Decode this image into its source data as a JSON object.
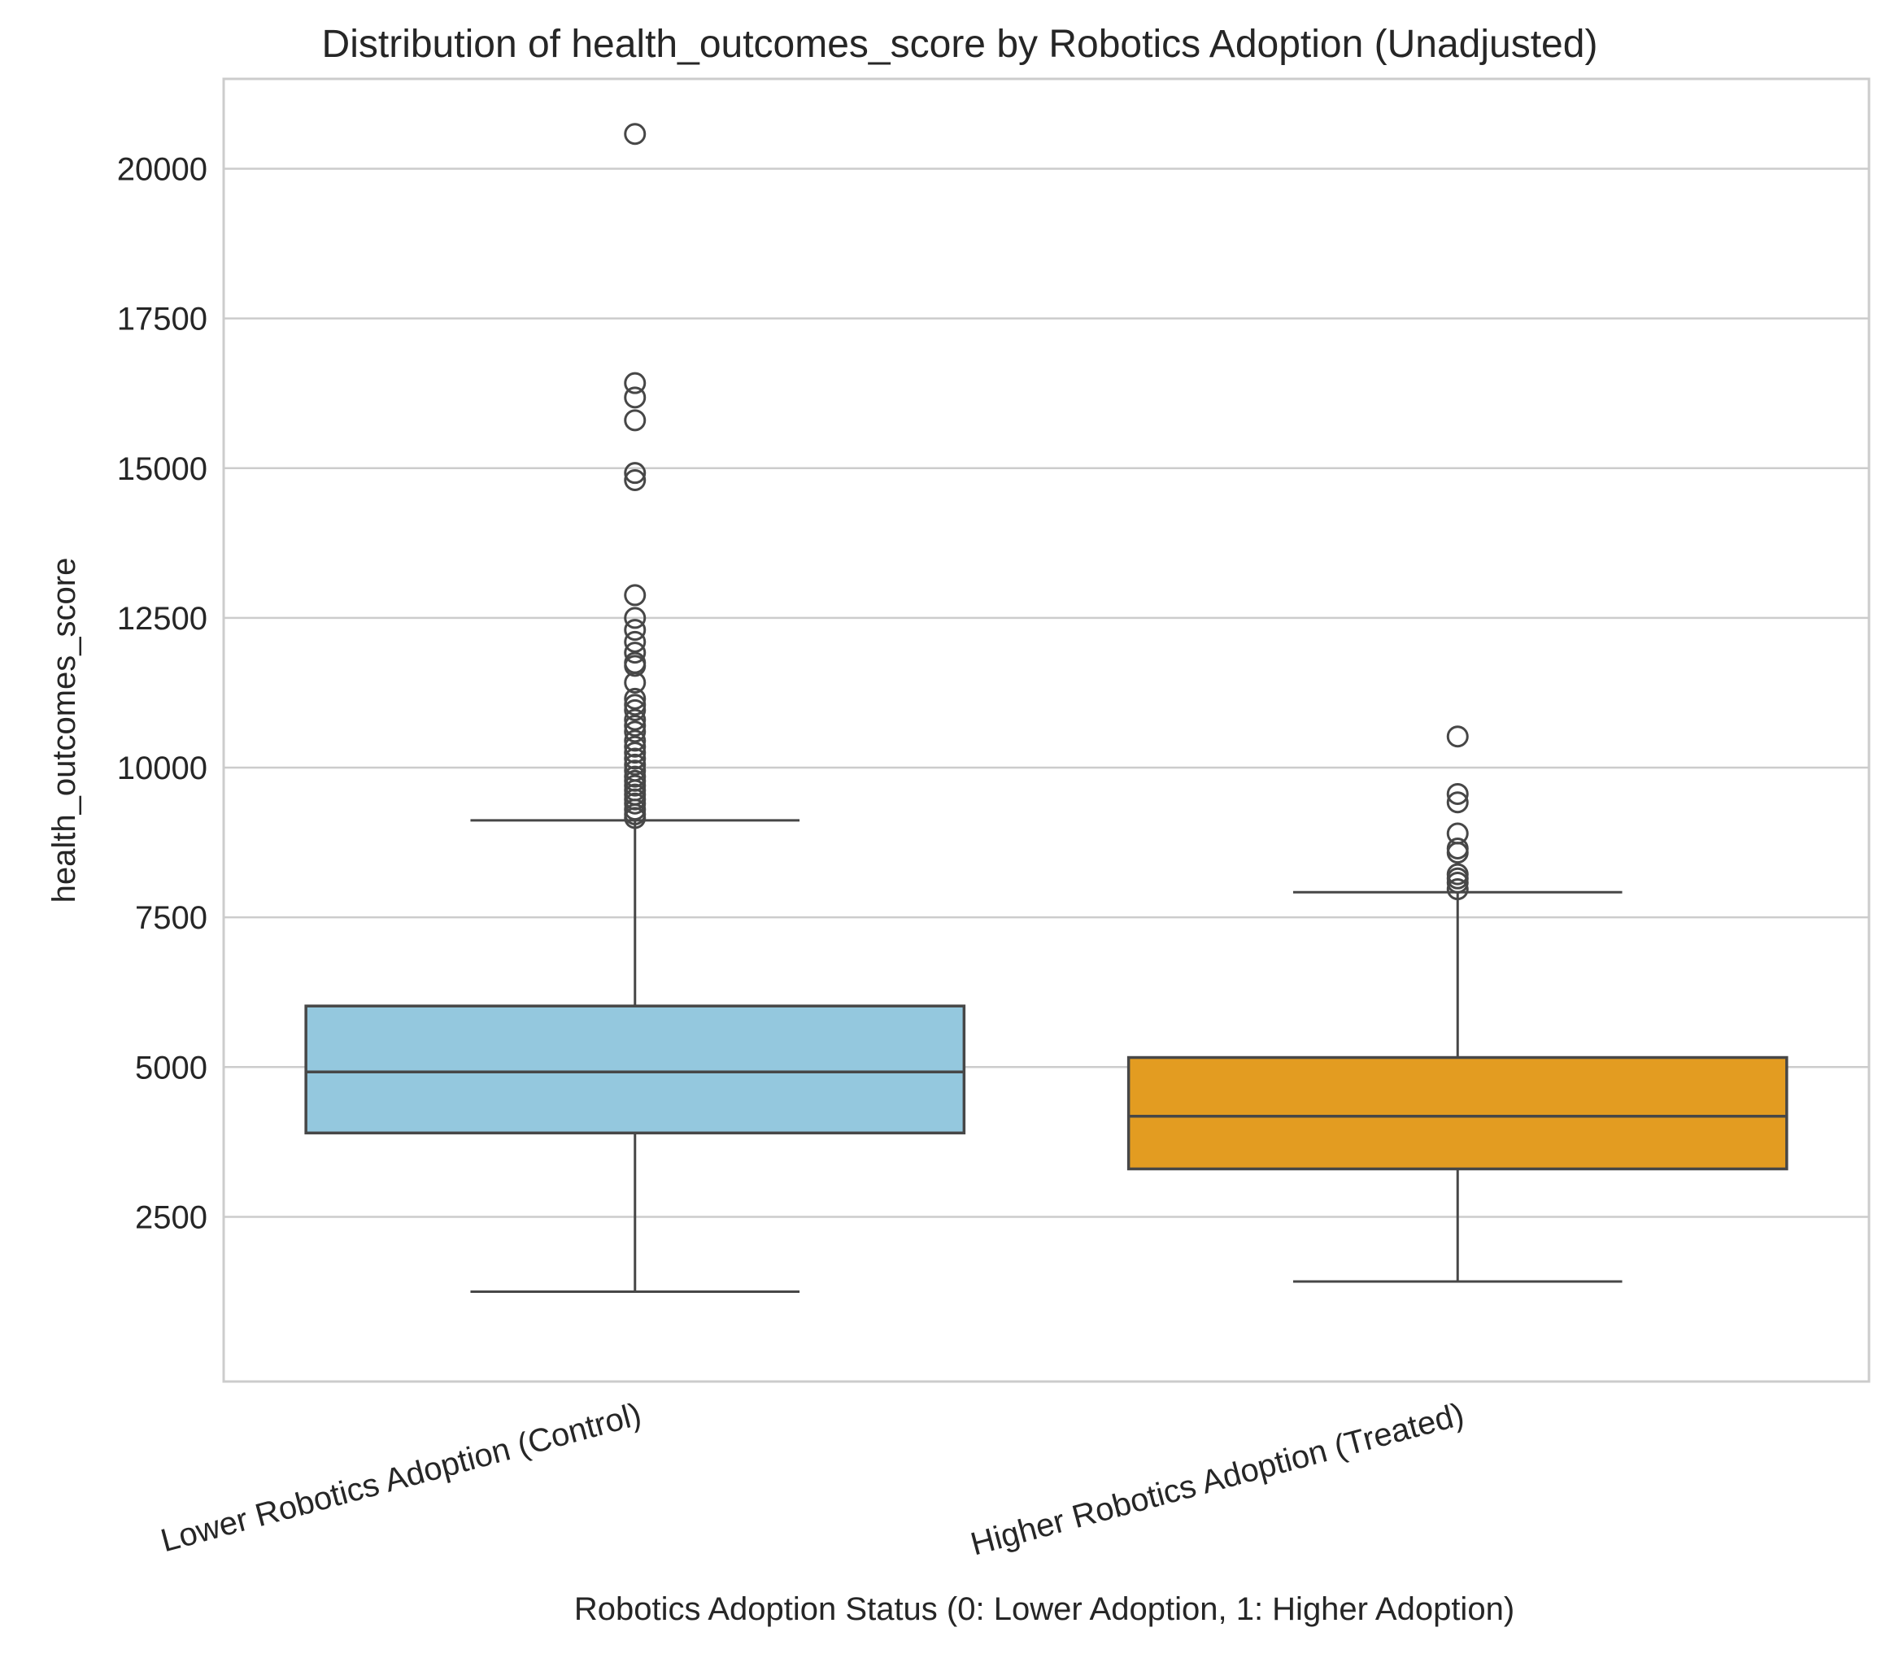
{
  "chart_data": {
    "type": "box",
    "title": "Distribution of health_outcomes_score by Robotics Adoption (Unadjusted)",
    "xlabel": "Robotics Adoption Status (0: Lower Adoption, 1: Higher Adoption)",
    "ylabel": "health_outcomes_score",
    "ylim": [
      -250,
      21500
    ],
    "yticks": [
      2500,
      5000,
      7500,
      10000,
      12500,
      15000,
      17500,
      20000
    ],
    "ytick_labels": [
      "2500",
      "5000",
      "7500",
      "10000",
      "12500",
      "15000",
      "17500",
      "20000"
    ],
    "grid": "y",
    "categories": [
      "Lower Robotics Adoption (Control)",
      "Higher Robotics Adoption (Treated)"
    ],
    "boxes": [
      {
        "color": "#94c8de",
        "whisker_low": 1250,
        "q1": 3900,
        "median": 4920,
        "q3": 6020,
        "whisker_high": 9120,
        "outliers": [
          20580,
          16420,
          16180,
          15800,
          14920,
          14800,
          12880,
          12500,
          12300,
          12100,
          11920,
          11750,
          11700,
          11420,
          11150,
          11050,
          10960,
          10800,
          10700,
          10600,
          10450,
          10350,
          10250,
          10150,
          10050,
          9950,
          9850,
          9780,
          9700,
          9620,
          9550,
          9470,
          9400,
          9300,
          9220,
          9160
        ]
      },
      {
        "color": "#e39c21",
        "whisker_low": 1420,
        "q1": 3300,
        "median": 4180,
        "q3": 5160,
        "whisker_high": 7920,
        "outliers": [
          10520,
          9560,
          9420,
          8900,
          8650,
          8580,
          8220,
          8150,
          8080,
          7970
        ]
      }
    ]
  }
}
